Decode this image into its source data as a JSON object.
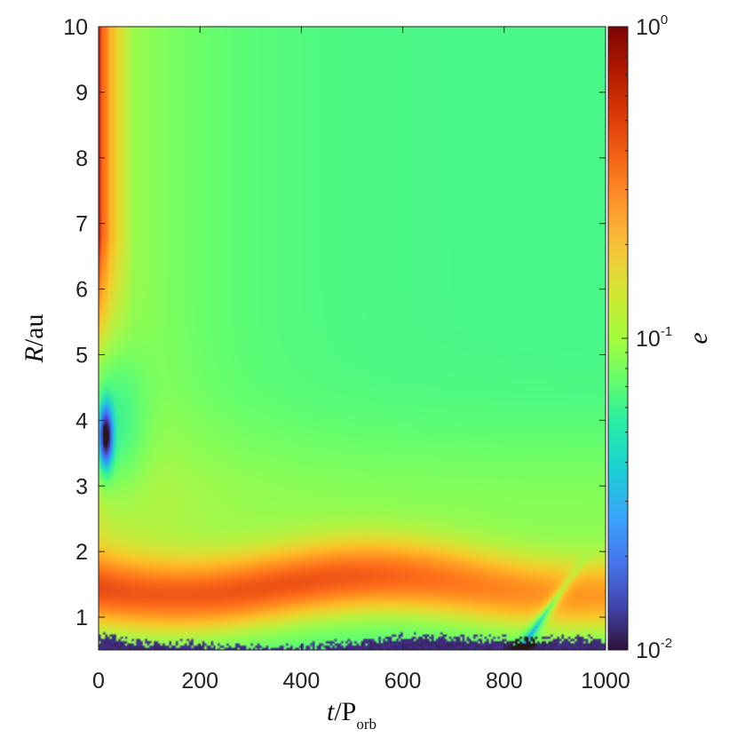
{
  "chart_data": {
    "type": "heatmap",
    "title": "",
    "xlabel": {
      "base": "t/P",
      "sub": "orb"
    },
    "ylabel": "R/au",
    "xlim": [
      0,
      1000
    ],
    "ylim": [
      0.5,
      10
    ],
    "x_ticks": [
      "0",
      "200",
      "400",
      "600",
      "800",
      "1000"
    ],
    "x_tick_values": [
      0,
      200,
      400,
      600,
      800,
      1000
    ],
    "y_ticks": [
      "1",
      "2",
      "3",
      "4",
      "5",
      "6",
      "7",
      "8",
      "9",
      "10"
    ],
    "y_tick_values": [
      1,
      2,
      3,
      4,
      5,
      6,
      7,
      8,
      9,
      10
    ],
    "colorbar": {
      "label": "e",
      "scale": "log",
      "range": [
        0.01,
        1
      ],
      "colormap": "turbo",
      "ticks": [
        {
          "base": "10",
          "exp": "0",
          "value": 1
        },
        {
          "base": "10",
          "exp": "-1",
          "value": 0.1
        },
        {
          "base": "10",
          "exp": "-2",
          "value": 0.01
        }
      ]
    },
    "grid": false,
    "features": [
      {
        "description": "low-eccentricity pocket",
        "t": [
          0,
          40
        ],
        "R": [
          3,
          4.3
        ],
        "e_min": 0.015
      },
      {
        "description": "high-eccentricity band",
        "t": [
          100,
          800
        ],
        "R": [
          1,
          2
        ],
        "e": 0.3
      },
      {
        "description": "inner disc near zero eccentricity",
        "t": [
          0,
          1000
        ],
        "R": [
          0.5,
          0.8
        ],
        "e": 0.01
      },
      {
        "description": "outer disc background",
        "t": [
          200,
          1000
        ],
        "R": [
          5,
          10
        ],
        "e": 0.06
      }
    ]
  }
}
